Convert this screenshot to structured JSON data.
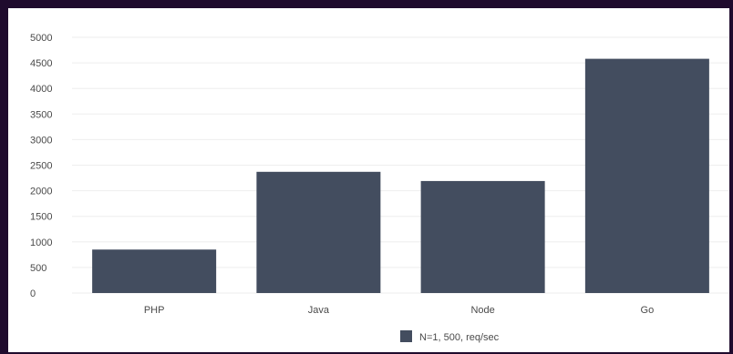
{
  "chart_data": {
    "type": "bar",
    "title": "",
    "xlabel": "",
    "ylabel": "",
    "categories": [
      "PHP",
      "Java",
      "Node",
      "Go"
    ],
    "series": [
      {
        "name": "N=1, 500, req/sec",
        "values": [
          850,
          2370,
          2190,
          4580
        ]
      }
    ],
    "ylim": [
      0,
      5000
    ],
    "yticks": [
      0,
      500,
      1000,
      1500,
      2000,
      2500,
      3000,
      3500,
      4000,
      4500,
      5000
    ],
    "grid": true,
    "legend_position": "bottom-center",
    "colors": {
      "bar": "#434d5f",
      "grid": "#eeeeee",
      "frame_background": "#ffffff",
      "page_background": "#1f0b2d"
    }
  }
}
